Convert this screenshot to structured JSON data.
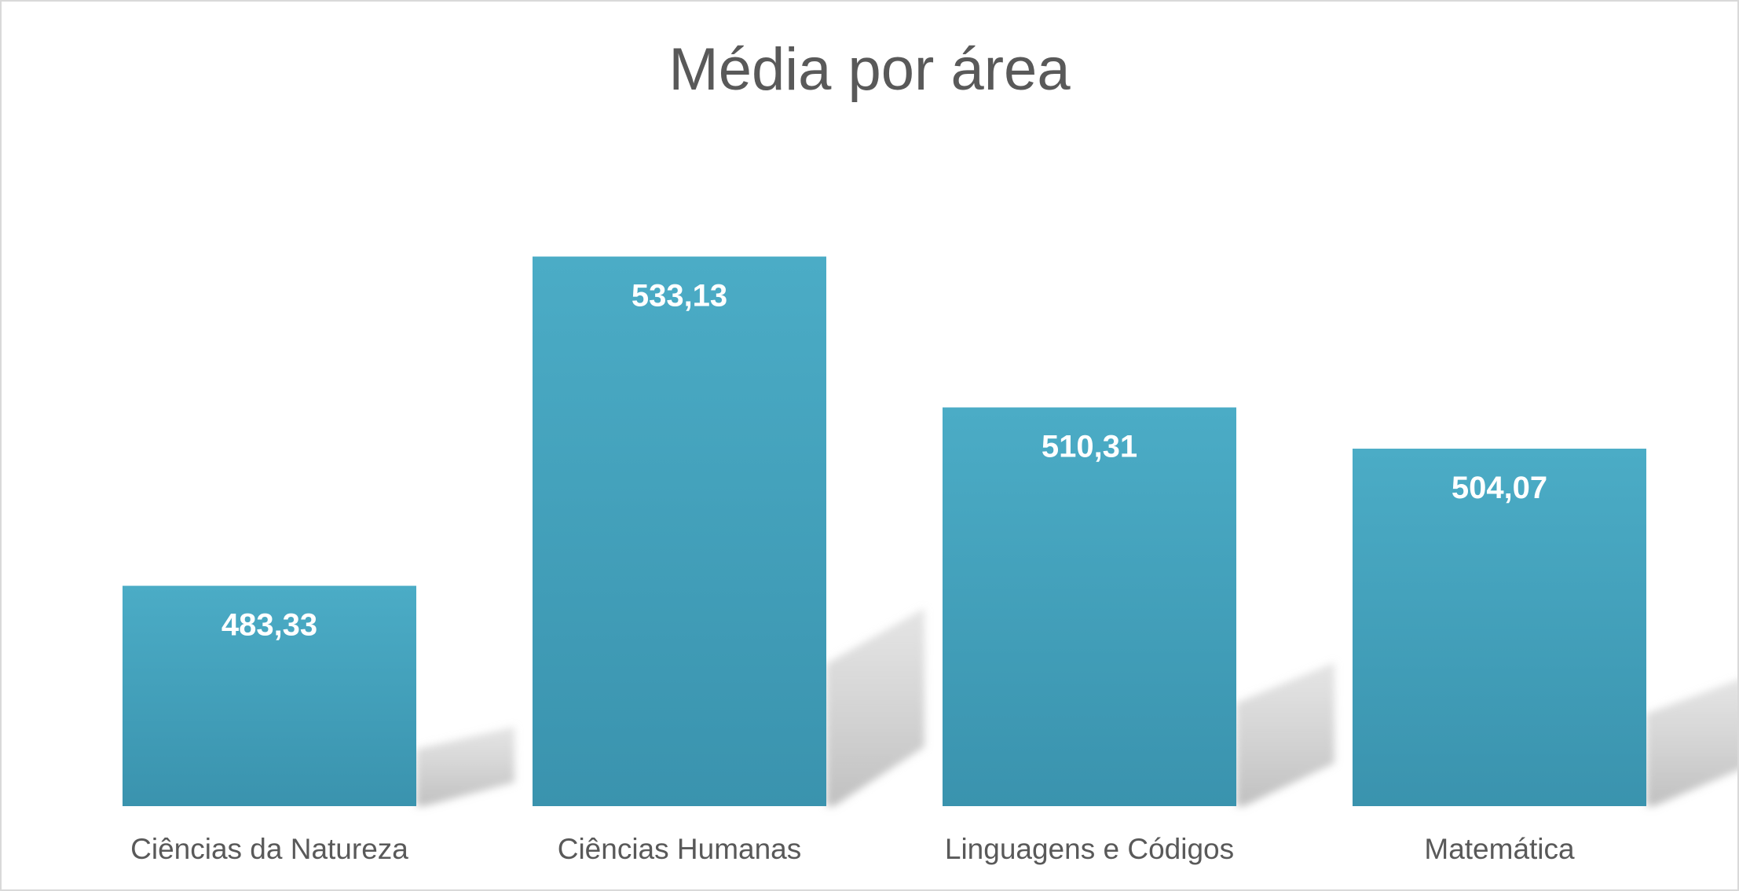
{
  "chart_data": {
    "type": "bar",
    "title": "Média por área",
    "categories": [
      "Ciências da Natureza",
      "Ciências Humanas",
      "Linguagens e Códigos",
      "Matemática"
    ],
    "values": [
      483.33,
      533.13,
      510.31,
      504.07
    ],
    "data_labels": [
      "483,33",
      "533,13",
      "510,31",
      "504,07"
    ],
    "ylim": [
      450,
      550
    ],
    "grid": false,
    "legend": "none",
    "bar_color_top": "#4bacc6",
    "bar_color_bottom": "#3a93ae",
    "shadow_color": "#cfcfcf"
  }
}
